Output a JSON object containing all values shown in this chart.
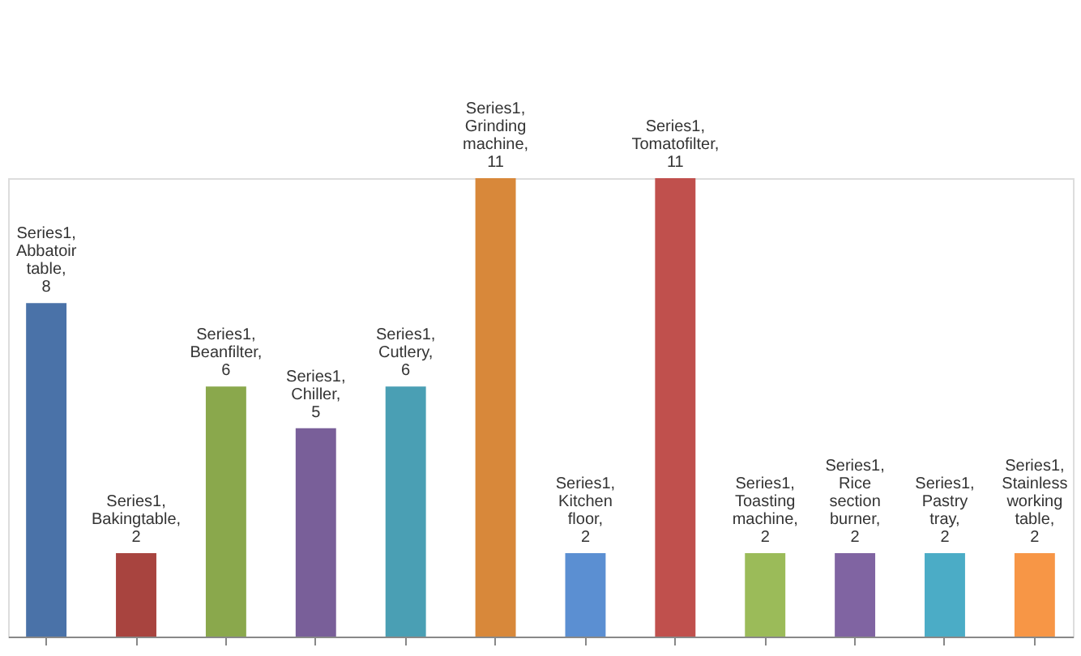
{
  "chart_data": {
    "type": "bar",
    "categories": [
      null,
      null,
      null,
      null,
      null,
      null,
      null,
      null,
      null,
      null,
      null,
      null
    ],
    "values": [
      8,
      2,
      6,
      5,
      6,
      11,
      2,
      11,
      2,
      2,
      2,
      2
    ],
    "colors": [
      "#4a72a8",
      "#a8443f",
      "#8aa84c",
      "#795f99",
      "#4a9fb4",
      "#d8883a",
      "#5b8fd2",
      "#c0504d",
      "#9bbb59",
      "#8064a2",
      "#4bacc6",
      "#f79646"
    ],
    "value_labels": [
      "Series1,Abbatoir table,8",
      "Series1,Bakingtable,2",
      "Series1,Beanfilter,6",
      "Series1,Chiller,5",
      "Series1,Cutlery,6",
      "Series1, Grinding machine, 11",
      "Series1, Kitchen floor, 2",
      "Series1,Tomatofilter, 11",
      "Series1,Toasting machine,2",
      "Series1,Rice section burner,2",
      "Series1, Pastry tray, 2",
      "Series1,Stainless working table,2"
    ],
    "grid": false
  }
}
